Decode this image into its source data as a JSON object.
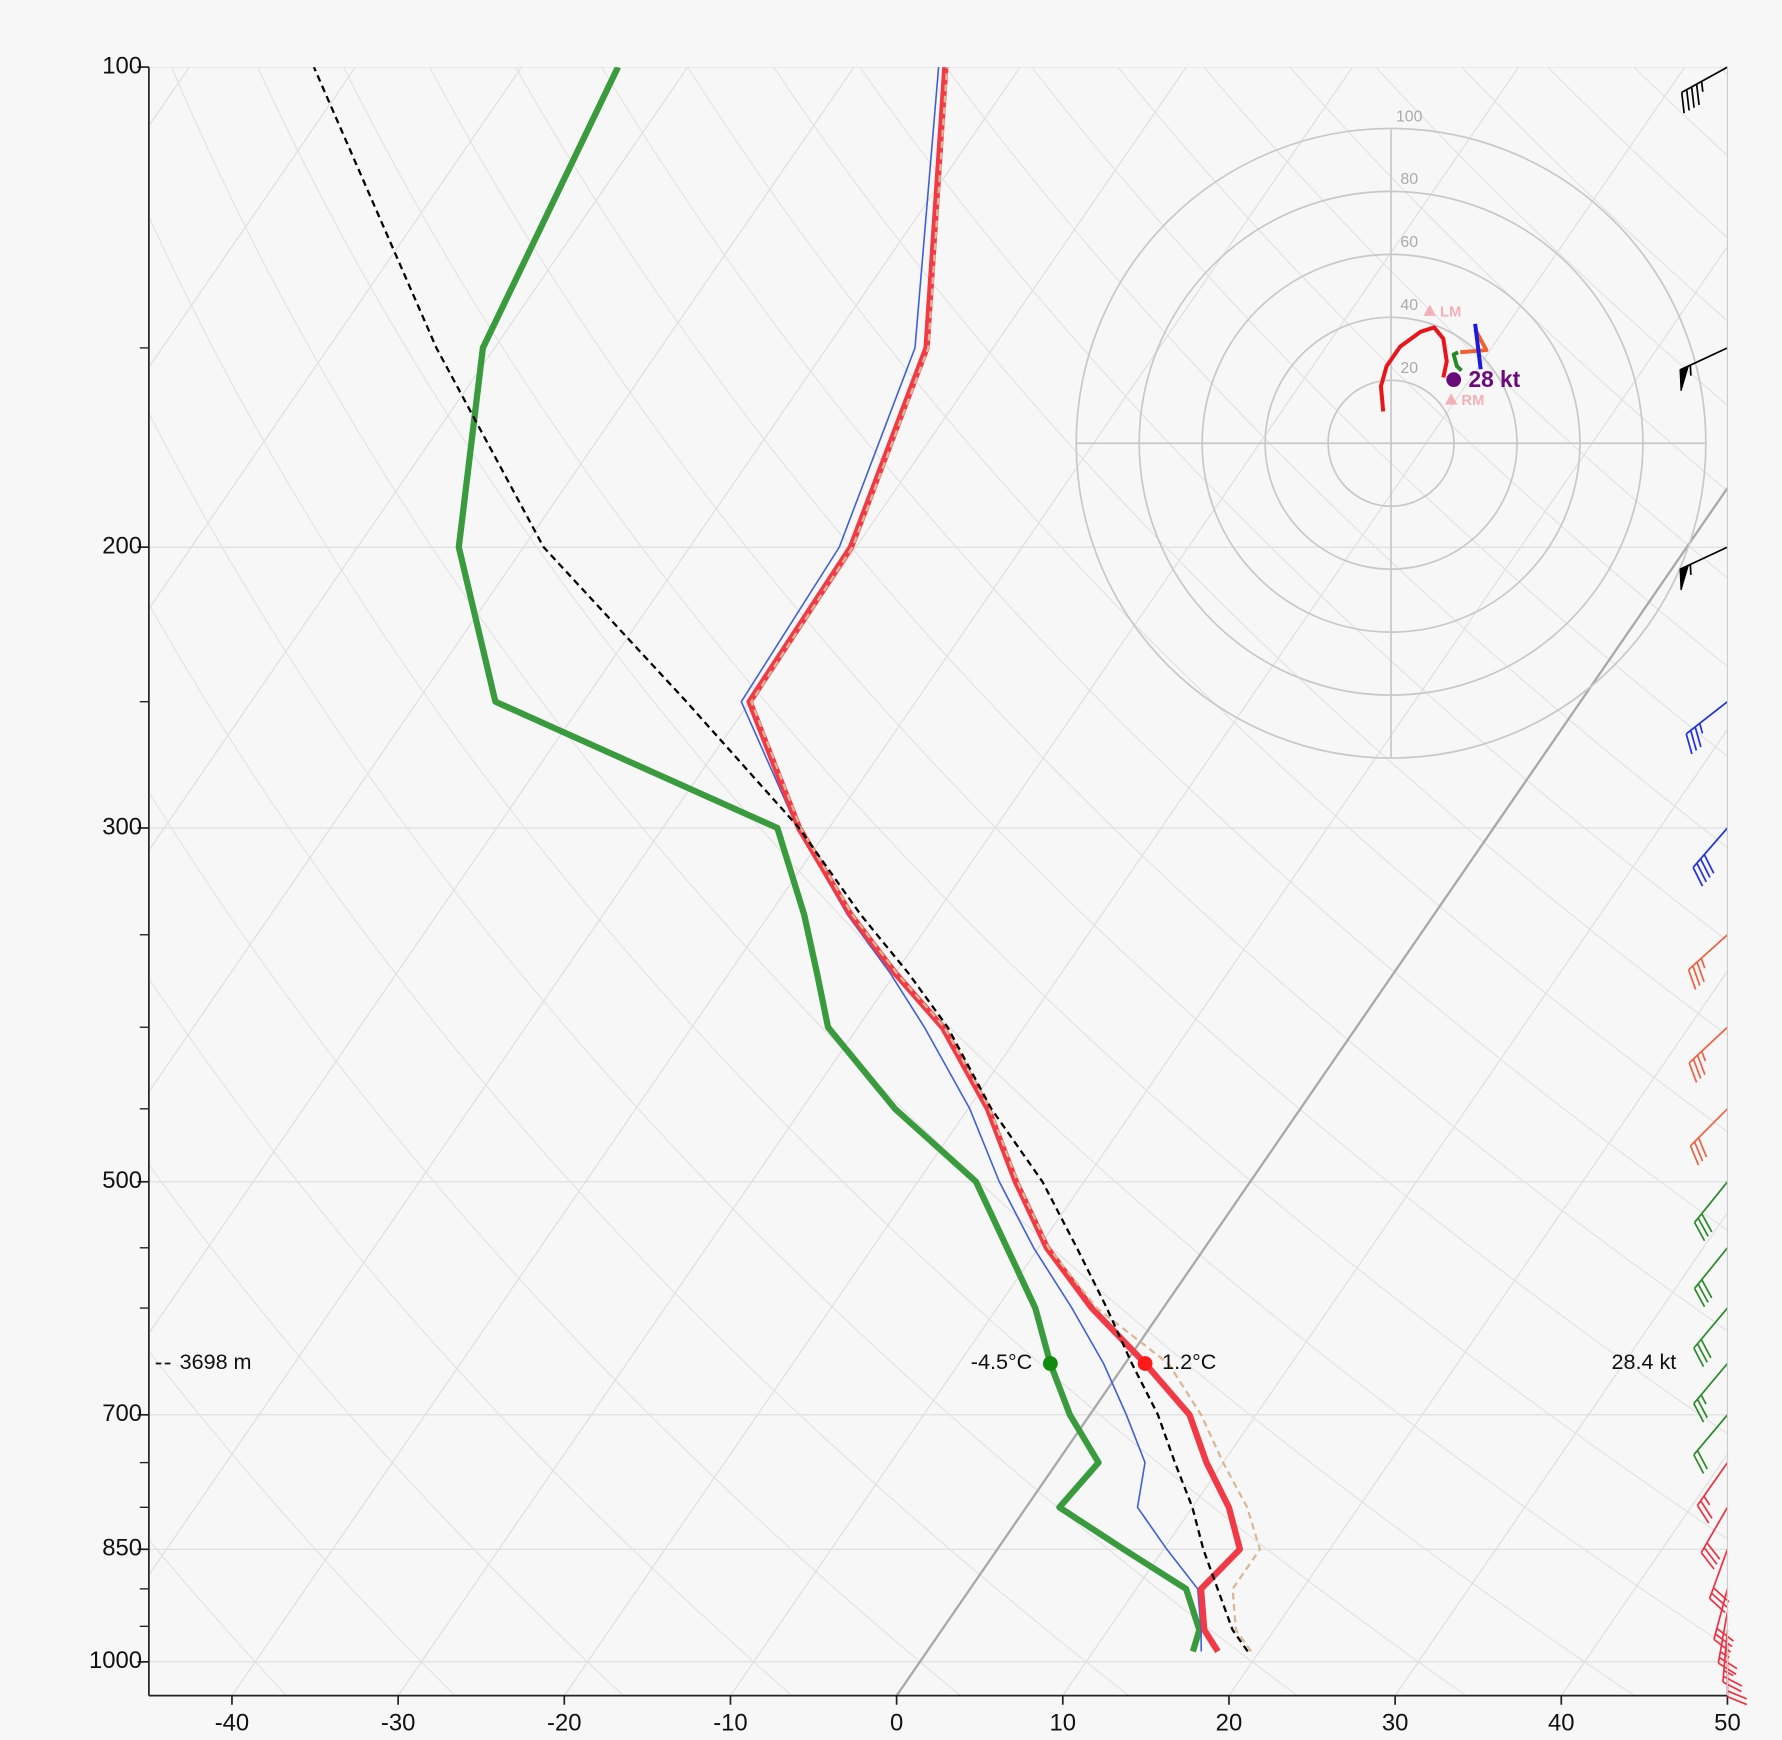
{
  "chart_data": [
    {
      "type": "skewt",
      "xlim": [
        -45,
        50
      ],
      "xticks": [
        -40,
        -30,
        -20,
        -10,
        0,
        10,
        20,
        30,
        40,
        50
      ],
      "ylim": [
        1050,
        100
      ],
      "yticks": [
        100,
        200,
        300,
        500,
        700,
        850,
        1000
      ],
      "yticks_minor": [
        150,
        250,
        350,
        400,
        450,
        550,
        600,
        750,
        800,
        900,
        950
      ],
      "log_scale": "y",
      "grid": true,
      "highlight_isotherm": 0,
      "pressure": [
        985,
        955,
        900,
        850,
        800,
        750,
        700,
        650,
        600,
        550,
        500,
        450,
        400,
        370,
        340,
        300,
        250,
        200,
        150,
        100
      ],
      "series": [
        {
          "color": "#3a9a3e",
          "style": "thick",
          "values": [
            16.0,
            15.5,
            13.0,
            7.6,
            2.0,
            2.5,
            -1.2,
            -4.5,
            -7.7,
            -11.9,
            -16.5,
            -24.4,
            -31.8,
            -34.7,
            -37.9,
            -43.1,
            -65.3,
            -73.9,
            -80.7,
            -84.2
          ]
        },
        {
          "color": "#3e5fd8",
          "style": "thin",
          "values": [
            16.5,
            15.6,
            13.7,
            10.2,
            6.7,
            5.3,
            2.2,
            -1.3,
            -5.5,
            -10.3,
            -15.1,
            -19.9,
            -26.0,
            -30.3,
            -35.3,
            -41.9,
            -50.5,
            -51.0,
            -54.7,
            -64.9
          ]
        },
        {
          "color": "#f23a46",
          "style": "thick",
          "values": [
            17.5,
            15.8,
            13.9,
            14.6,
            12.2,
            9.0,
            6.0,
            1.2,
            -4.3,
            -9.5,
            -14.1,
            -18.8,
            -24.9,
            -30.0,
            -35.1,
            -41.8,
            -50.0,
            -50.3,
            -54.0,
            -64.5
          ]
        },
        {
          "color": "#d8b896",
          "style": "dashed",
          "values": [
            19.5,
            17.7,
            15.8,
            15.8,
            13.3,
            10.0,
            6.7,
            2.6,
            -4.0,
            -9.4,
            -14.0,
            -18.7,
            -24.8,
            -29.9,
            -35.0,
            -41.7,
            -49.9,
            -50.2,
            -53.9,
            -64.4
          ]
        },
        {
          "color": "#000000",
          "style": "dashed",
          "values": [
            19.3,
            17.5,
            14.9,
            12.4,
            10.0,
            7.1,
            4.1,
            0.4,
            -3.4,
            -7.7,
            -12.5,
            -18.6,
            -24.6,
            -29.2,
            -34.5,
            -41.8,
            -53.8,
            -68.8,
            -83.5,
            -102.5
          ]
        }
      ],
      "readout": {
        "pressure": 650,
        "height": "3698 m",
        "wind": "28.4 kt",
        "values": [
          1.2,
          -4.5
        ],
        "value_labels": [
          "1.2°C",
          "-4.5°C"
        ],
        "colors": [
          "#ff1a1a",
          "#118a11"
        ]
      },
      "wind": {
        "pressure": [
          100,
          150,
          200,
          250,
          300,
          350,
          400,
          450,
          500,
          550,
          600,
          650,
          700,
          750,
          800,
          850,
          900,
          930,
          955,
          975
        ],
        "direction": [
          241,
          245,
          245,
          232,
          221,
          228,
          227,
          225,
          219,
          219,
          220,
          220,
          220,
          215,
          210,
          200,
          195,
          190,
          185,
          180
        ],
        "speed": [
          45,
          55,
          55,
          35,
          40,
          35,
          35,
          30,
          30,
          30,
          30,
          25,
          20,
          25,
          30,
          30,
          30,
          25,
          25,
          20
        ],
        "colors": [
          "#000000",
          "#000000",
          "#000000",
          "#2030e0",
          "#2030e0",
          "#f06040",
          "#f06040",
          "#f06040",
          "#2a8a2a",
          "#2a8a2a",
          "#2a8a2a",
          "#2a8a2a",
          "#2a8a2a",
          "#f03040",
          "#f03040",
          "#f03040",
          "#f03040",
          "#f03040",
          "#f03040",
          "#f03040"
        ]
      }
    },
    {
      "type": "hodograph",
      "rlim": 100,
      "rticks": [
        20,
        40,
        60,
        80,
        100
      ],
      "segments": [
        {
          "color": "#e8151b",
          "u": [
            -2.5,
            -3.2,
            -1.4,
            2.9,
            9.4,
            13.7,
            16.6,
            17.7,
            16.6
          ],
          "v": [
            10.1,
            18.1,
            24.5,
            30.7,
            35.4,
            36.8,
            33.2,
            26.0,
            20.9
          ]
        },
        {
          "color": "#2a8a2a",
          "u": [
            22.4,
            20.9,
            19.9,
            21.3
          ],
          "v": [
            23.1,
            24.5,
            28.2,
            28.9
          ]
        },
        {
          "color": "#f06030",
          "u": [
            22.0,
            30.3,
            26.7
          ],
          "v": [
            28.9,
            29.6,
            36.1
          ]
        },
        {
          "color": "#1a1adc",
          "u": [
            26.7,
            28.5
          ],
          "v": [
            37.9,
            23.5
          ]
        }
      ],
      "storm_motion": {
        "u": 19.9,
        "v": 20.2,
        "label": "28 kt",
        "color": "#6a0a7a"
      },
      "left_mover": {
        "u": 12.3,
        "v": 41.9,
        "label": "LM",
        "color": "#f4b0b8"
      },
      "right_mover": {
        "u": 19.1,
        "v": 13.7,
        "label": "RM",
        "color": "#f4b0b8"
      }
    }
  ]
}
